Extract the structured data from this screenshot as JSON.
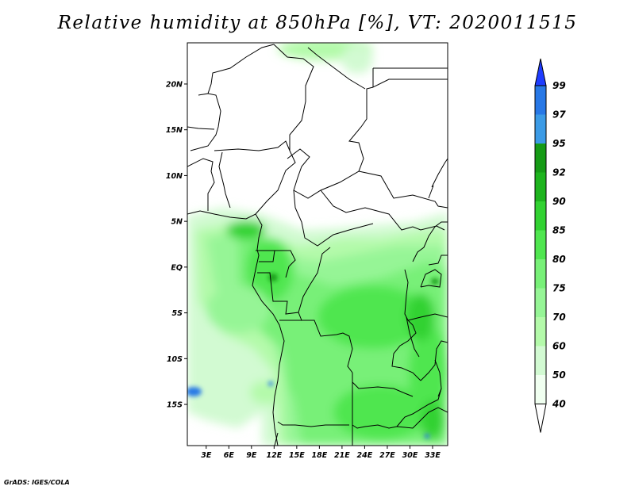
{
  "title": "Relative humidity at 850hPa [%], VT: 2020011515",
  "credit": "GrADS: IGES/COLA",
  "map": {
    "lat_ticks": [
      "20N",
      "15N",
      "10N",
      "5N",
      "EQ",
      "5S",
      "10S",
      "15S"
    ],
    "lat_values": [
      20,
      15,
      10,
      5,
      0,
      -5,
      -10,
      -15
    ],
    "lon_ticks": [
      "3E",
      "6E",
      "9E",
      "12E",
      "15E",
      "18E",
      "21E",
      "24E",
      "27E",
      "30E",
      "33E"
    ],
    "lon_values": [
      3,
      6,
      9,
      12,
      15,
      18,
      21,
      24,
      27,
      30,
      33
    ],
    "lon_range": [
      0.5,
      35
    ],
    "lat_range": [
      -19.5,
      24.5
    ]
  },
  "colorbar": {
    "levels": [
      "99",
      "97",
      "95",
      "92",
      "90",
      "85",
      "80",
      "75",
      "70",
      "60",
      "50",
      "40"
    ],
    "colors": [
      "#1e3cff",
      "#2878e6",
      "#3c9be6",
      "#169b16",
      "#1eb41e",
      "#32d232",
      "#50e650",
      "#78f078",
      "#96f596",
      "#b4faaa",
      "#d2fad2",
      "#f0fff0"
    ],
    "top_triangle_color": "#1e3cff",
    "bottom_triangle_color": "#ffffff"
  }
}
